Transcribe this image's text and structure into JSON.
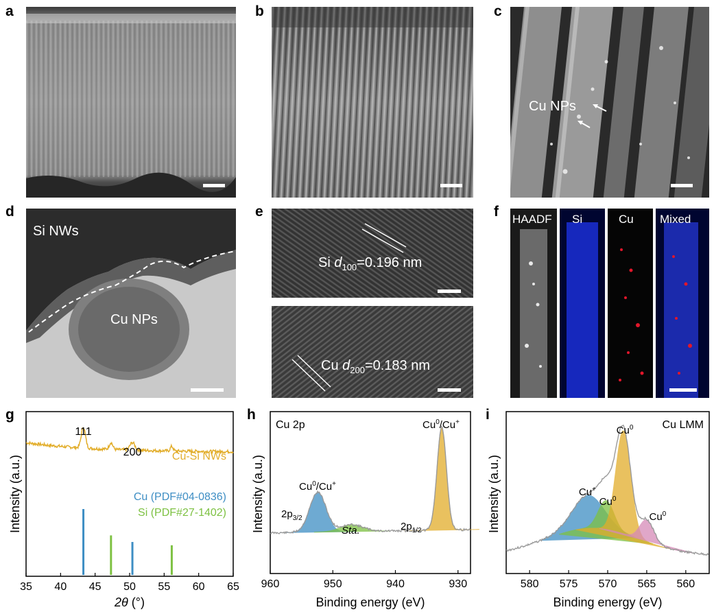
{
  "panel_labels": {
    "a": "a",
    "b": "b",
    "c": "c",
    "d": "d",
    "e": "e",
    "f": "f",
    "g": "g",
    "h": "h",
    "i": "i"
  },
  "sem": {
    "c_annotation": "Cu NPs"
  },
  "tem": {
    "d_si": "Si NWs",
    "d_cu": "Cu NPs",
    "e_top_prefix": "Si ",
    "e_top_d": "d",
    "e_top_sub": "100",
    "e_top_value": "=0.196 nm",
    "e_bot_prefix": "Cu ",
    "e_bot_d": "d",
    "e_bot_sub": "200",
    "e_bot_value": "=0.183 nm"
  },
  "eds": {
    "haadf": "HAADF",
    "si": "Si",
    "cu": "Cu",
    "mixed": "Mixed"
  },
  "chart_data": [
    {
      "panel": "g",
      "type": "line",
      "xlabel_var": "2θ",
      "xlabel_unit": " (°)",
      "ylabel": "Intensity (a.u.)",
      "xlim": [
        35,
        65
      ],
      "xticks": [
        "35",
        "40",
        "45",
        "50",
        "55",
        "60",
        "65"
      ],
      "series": [
        {
          "name": "Cu-Si NWs",
          "color": "#e2ad2a"
        }
      ],
      "reference_lines": [
        {
          "name": "Cu (PDF#04-0836)",
          "color": "#3e8ec4",
          "positions": [
            43.3,
            50.4
          ],
          "heights": [
            1.0,
            0.5
          ]
        },
        {
          "name": "Si (PDF#27-1402)",
          "color": "#7dc142",
          "positions": [
            47.3,
            56.1
          ],
          "heights": [
            0.6,
            0.45
          ]
        }
      ],
      "peak_labels": [
        {
          "text": "111",
          "x": 43.3
        },
        {
          "text": "200",
          "x": 50.4
        }
      ]
    },
    {
      "panel": "h",
      "type": "line",
      "title": "Cu 2p",
      "xlabel": "Binding energy (eV)",
      "ylabel": "Intensity (a.u.)",
      "xlim": [
        960,
        928
      ],
      "xticks": [
        "960",
        "950",
        "940",
        "930"
      ],
      "peaks": [
        {
          "center": 952.4,
          "color": "#3e8ec4"
        },
        {
          "center": 932.6,
          "color": "#e2ad2a"
        },
        {
          "center": 947.0,
          "color": "#7dc142"
        }
      ],
      "annotations": {
        "p32": "2p",
        "p32_sub": "3/2",
        "p12": "2p",
        "p12_sub": "1/2",
        "sat": "Sta.",
        "left_peak_a": "Cu",
        "left_peak_a_sup": "0",
        "left_peak_b": "/Cu",
        "left_peak_b_sup": "+",
        "right_peak_a": "Cu",
        "right_peak_a_sup": "0",
        "right_peak_b": "/Cu",
        "right_peak_b_sup": "+"
      }
    },
    {
      "panel": "i",
      "type": "line",
      "title": "Cu LMM",
      "xlabel": "Binding energy (eV)",
      "ylabel": "Intensity (a.u.)",
      "xlim": [
        583,
        557
      ],
      "xticks": [
        "580",
        "575",
        "570",
        "565",
        "560"
      ],
      "peaks": [
        {
          "center": 572.5,
          "label": "Cu",
          "sup": "+",
          "color": "#3e8ec4"
        },
        {
          "center": 570.2,
          "label": "Cu",
          "sup": "0",
          "color": "#7dc142"
        },
        {
          "center": 568.0,
          "label": "Cu",
          "sup": "0",
          "color": "#e2ad2a"
        },
        {
          "center": 565.0,
          "label": "Cu",
          "sup": "0",
          "color": "#d68ab8"
        }
      ]
    }
  ]
}
